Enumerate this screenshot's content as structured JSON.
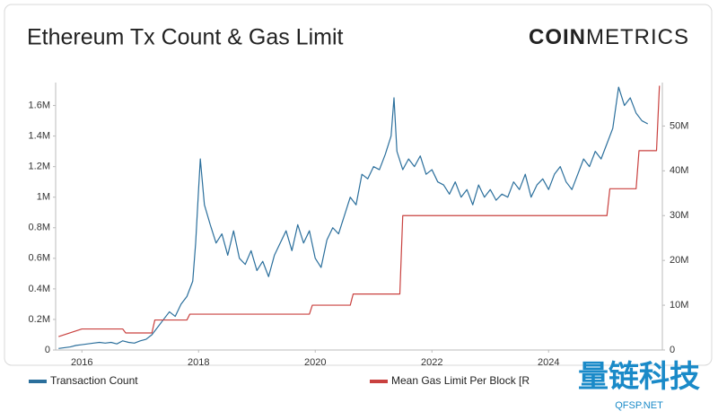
{
  "chart_data": {
    "type": "line",
    "title": "Ethereum Tx Count & Gas Limit",
    "brand": [
      "COIN",
      "METRICS"
    ],
    "watermark": [
      "量链科技",
      "QFSP.NET"
    ],
    "xlim": [
      2015.55,
      2025.95
    ],
    "xticks": [
      2016,
      2018,
      2020,
      2022,
      2024
    ],
    "ylim": [
      0,
      1750000
    ],
    "yticks": [
      0,
      {
        "value": 200000,
        "label": "0.2M"
      },
      {
        "value": 400000,
        "label": "0.4M"
      },
      {
        "value": 600000,
        "label": "0.6M"
      },
      {
        "value": 800000,
        "label": "0.8M"
      },
      {
        "value": 1000000,
        "label": "1M"
      },
      {
        "value": 1200000,
        "label": "1.2M"
      },
      {
        "value": 1400000,
        "label": "1.4M"
      },
      {
        "value": 1600000,
        "label": "1.6M"
      }
    ],
    "y2lim": [
      0,
      59700000
    ],
    "y2ticks": [
      0,
      {
        "value": 10000000,
        "label": "10M"
      },
      {
        "value": 20000000,
        "label": "20M"
      },
      {
        "value": 30000000,
        "label": "30M"
      },
      {
        "value": 40000000,
        "label": "40M"
      },
      {
        "value": 50000000,
        "label": "50M"
      }
    ],
    "series": [
      {
        "name": "Transaction Count",
        "color": "#2b6f9c",
        "x": [
          2015.6,
          2015.7,
          2015.8,
          2015.9,
          2016.0,
          2016.1,
          2016.2,
          2016.3,
          2016.4,
          2016.5,
          2016.6,
          2016.7,
          2016.8,
          2016.9,
          2017.0,
          2017.1,
          2017.2,
          2017.3,
          2017.4,
          2017.5,
          2017.6,
          2017.7,
          2017.8,
          2017.9,
          2017.95,
          2018.0,
          2018.03,
          2018.1,
          2018.2,
          2018.3,
          2018.4,
          2018.5,
          2018.6,
          2018.7,
          2018.8,
          2018.9,
          2019.0,
          2019.1,
          2019.2,
          2019.3,
          2019.4,
          2019.5,
          2019.6,
          2019.7,
          2019.8,
          2019.9,
          2020.0,
          2020.1,
          2020.2,
          2020.3,
          2020.4,
          2020.5,
          2020.6,
          2020.7,
          2020.8,
          2020.9,
          2021.0,
          2021.1,
          2021.2,
          2021.3,
          2021.35,
          2021.4,
          2021.5,
          2021.6,
          2021.7,
          2021.8,
          2021.9,
          2022.0,
          2022.1,
          2022.2,
          2022.3,
          2022.4,
          2022.5,
          2022.6,
          2022.7,
          2022.8,
          2022.9,
          2023.0,
          2023.1,
          2023.2,
          2023.3,
          2023.4,
          2023.5,
          2023.6,
          2023.7,
          2023.8,
          2023.9,
          2024.0,
          2024.1,
          2024.2,
          2024.3,
          2024.4,
          2024.5,
          2024.6,
          2024.7,
          2024.8,
          2024.9,
          2025.0,
          2025.1,
          2025.2,
          2025.3,
          2025.4,
          2025.5,
          2025.6,
          2025.7
        ],
        "values": [
          10000,
          15000,
          20000,
          30000,
          35000,
          40000,
          45000,
          50000,
          45000,
          50000,
          40000,
          60000,
          50000,
          45000,
          60000,
          70000,
          100000,
          150000,
          200000,
          250000,
          220000,
          300000,
          350000,
          450000,
          700000,
          1050000,
          1250000,
          950000,
          820000,
          700000,
          760000,
          620000,
          780000,
          600000,
          560000,
          650000,
          520000,
          580000,
          480000,
          620000,
          700000,
          780000,
          650000,
          820000,
          700000,
          780000,
          600000,
          540000,
          720000,
          800000,
          760000,
          880000,
          1000000,
          950000,
          1150000,
          1120000,
          1200000,
          1180000,
          1280000,
          1400000,
          1650000,
          1300000,
          1180000,
          1250000,
          1200000,
          1270000,
          1150000,
          1180000,
          1100000,
          1080000,
          1020000,
          1100000,
          1000000,
          1050000,
          950000,
          1080000,
          1000000,
          1050000,
          980000,
          1020000,
          1000000,
          1100000,
          1050000,
          1150000,
          1000000,
          1080000,
          1120000,
          1050000,
          1150000,
          1200000,
          1100000,
          1050000,
          1150000,
          1250000,
          1200000,
          1300000,
          1250000,
          1350000,
          1450000,
          1720000,
          1600000,
          1650000,
          1550000,
          1500000,
          1480000
        ]
      },
      {
        "name": "Mean Gas Limit Per Block [R",
        "color": "#c9413f",
        "axis": "y2",
        "x": [
          2015.6,
          2016.0,
          2016.7,
          2016.75,
          2017.2,
          2017.25,
          2017.8,
          2017.85,
          2019.9,
          2019.95,
          2020.6,
          2020.65,
          2021.45,
          2021.5,
          2025.0,
          2025.05,
          2025.5,
          2025.55,
          2025.85,
          2025.9
        ],
        "values": [
          3000000,
          4700000,
          4700000,
          3800000,
          3800000,
          6700000,
          6700000,
          8000000,
          8000000,
          10000000,
          10000000,
          12500000,
          12500000,
          30000000,
          30000000,
          36000000,
          36000000,
          44500000,
          44500000,
          59000000
        ]
      }
    ]
  }
}
